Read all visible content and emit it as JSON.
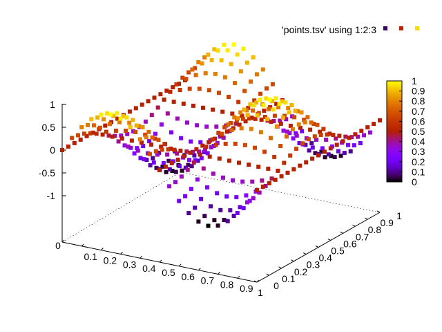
{
  "chart_data": {
    "type": "scatter3d",
    "title": "",
    "legend": {
      "entries": [
        {
          "label": "'points.tsv' using 1:2:3",
          "sample_colors": [
            "#3a006b",
            "#c21f00",
            "#ffd800"
          ]
        }
      ],
      "placement": "top-right"
    },
    "x": {
      "range": [
        0,
        1
      ],
      "ticks": [
        "0",
        "0.1",
        "0.2",
        "0.3",
        "0.4",
        "0.5",
        "0.6",
        "0.7",
        "0.8",
        "0.9",
        "1"
      ]
    },
    "y": {
      "range": [
        0,
        1
      ],
      "ticks": [
        "0",
        "0.1",
        "0.2",
        "0.3",
        "0.4",
        "0.5",
        "0.6",
        "0.7",
        "0.8",
        "0.9",
        "1"
      ]
    },
    "z": {
      "range": [
        -1,
        1
      ],
      "ticks": [
        "-1",
        "-0.5",
        "0",
        "0.5",
        "1"
      ]
    },
    "colorbar": {
      "range": [
        0,
        1
      ],
      "ticks": [
        "0",
        "0.1",
        "0.2",
        "0.3",
        "0.4",
        "0.5",
        "0.6",
        "0.7",
        "0.8",
        "0.9",
        "1"
      ],
      "palette": "gnuplot (black-blue-violet-red-orange-yellow)"
    },
    "surface": {
      "grid": {
        "x_samples": 21,
        "y_samples": 21,
        "x_start": 0,
        "x_step": 0.05,
        "y_start": 0,
        "y_step": 0.05
      },
      "function": "z = sin(2*pi*x) * cos(2*pi*y)",
      "color_by": "z, normalized to colorbar range"
    }
  }
}
